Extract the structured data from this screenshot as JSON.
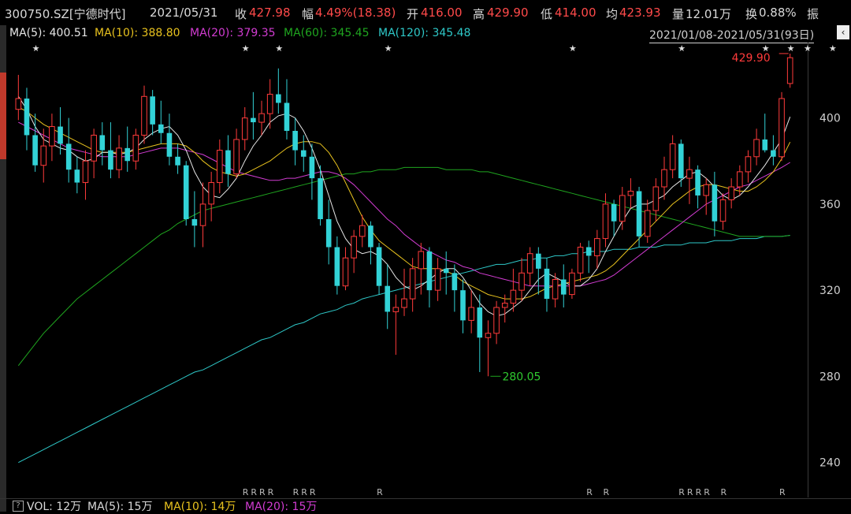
{
  "header": {
    "code": "300750.SZ[宁德时代]",
    "date": "2021/05/31",
    "close_label": "收",
    "close": "427.98",
    "change_label": "幅",
    "change": "4.49%(18.38)",
    "open_label": "开",
    "open": "416.00",
    "high_label": "高",
    "high": "429.90",
    "low_label": "低",
    "low": "414.00",
    "avg_label": "均",
    "avg": "423.93",
    "vol_label": "量",
    "vol": "12.01万",
    "turnover_label": "换",
    "turnover": "0.88%",
    "amp_label": "振"
  },
  "ma_legend": {
    "ma5": "MA(5): 400.51",
    "ma10": "MA(10): 388.80",
    "ma20": "MA(20): 379.35",
    "ma60": "MA(60): 345.45",
    "ma120": "MA(120): 345.48",
    "range": "2021/01/08-2021/05/31(93日)"
  },
  "bottom": {
    "vol": "VOL: 12万",
    "ma5": "MA(5): 15万",
    "ma10": "MA(10): 14万",
    "ma20": "MA(20): 15万"
  },
  "colors": {
    "up": "#ff3b3b",
    "down": "#32d2d6",
    "ma5": "#e6e6e6",
    "ma10": "#e8c21e",
    "ma20": "#d23cd2",
    "ma60": "#1fa51f",
    "ma120": "#2ec8c8",
    "axis_text": "#cfcfcf"
  },
  "chart_data": {
    "type": "candlestick",
    "ylim": [
      230,
      435
    ],
    "yticks": [
      240,
      280,
      320,
      360,
      400
    ],
    "annotations": {
      "high_label": "429.90",
      "low_label": "280.05"
    },
    "candles": [
      [
        404,
        420,
        399,
        409
      ],
      [
        409,
        414,
        385,
        392
      ],
      [
        392,
        402,
        375,
        378
      ],
      [
        378,
        395,
        370,
        387
      ],
      [
        387,
        402,
        380,
        396
      ],
      [
        396,
        405,
        383,
        388
      ],
      [
        388,
        400,
        370,
        376
      ],
      [
        376,
        382,
        365,
        370
      ],
      [
        370,
        385,
        362,
        380
      ],
      [
        380,
        395,
        372,
        392
      ],
      [
        392,
        398,
        378,
        385
      ],
      [
        385,
        398,
        372,
        376
      ],
      [
        376,
        392,
        372,
        386
      ],
      [
        386,
        396,
        375,
        380
      ],
      [
        380,
        395,
        376,
        392
      ],
      [
        392,
        415,
        388,
        410
      ],
      [
        410,
        413,
        392,
        397
      ],
      [
        397,
        408,
        388,
        393
      ],
      [
        393,
        402,
        378,
        382
      ],
      [
        382,
        388,
        374,
        378
      ],
      [
        378,
        380,
        350,
        353
      ],
      [
        353,
        366,
        340,
        350
      ],
      [
        350,
        370,
        340,
        360
      ],
      [
        360,
        375,
        352,
        370
      ],
      [
        370,
        390,
        365,
        385
      ],
      [
        385,
        392,
        368,
        374
      ],
      [
        374,
        395,
        372,
        390
      ],
      [
        390,
        405,
        385,
        400
      ],
      [
        400,
        412,
        390,
        398
      ],
      [
        398,
        408,
        392,
        402
      ],
      [
        402,
        418,
        395,
        411
      ],
      [
        411,
        423,
        402,
        407
      ],
      [
        407,
        418,
        390,
        394
      ],
      [
        394,
        400,
        378,
        385
      ],
      [
        385,
        392,
        375,
        382
      ],
      [
        382,
        388,
        362,
        372
      ],
      [
        372,
        378,
        350,
        353
      ],
      [
        353,
        362,
        332,
        340
      ],
      [
        340,
        345,
        318,
        322
      ],
      [
        322,
        340,
        320,
        335
      ],
      [
        335,
        348,
        328,
        345
      ],
      [
        345,
        355,
        340,
        350
      ],
      [
        350,
        352,
        332,
        340
      ],
      [
        340,
        342,
        318,
        322
      ],
      [
        322,
        332,
        302,
        310
      ],
      [
        310,
        318,
        290,
        312
      ],
      [
        312,
        330,
        308,
        316
      ],
      [
        316,
        335,
        310,
        330
      ],
      [
        330,
        342,
        318,
        338
      ],
      [
        338,
        340,
        312,
        320
      ],
      [
        320,
        335,
        315,
        330
      ],
      [
        330,
        338,
        318,
        328
      ],
      [
        328,
        332,
        310,
        320
      ],
      [
        320,
        325,
        300,
        306
      ],
      [
        306,
        320,
        300,
        312
      ],
      [
        312,
        318,
        282,
        298
      ],
      [
        298,
        306,
        280.05,
        300
      ],
      [
        300,
        315,
        295,
        312
      ],
      [
        312,
        318,
        305,
        314
      ],
      [
        314,
        330,
        310,
        320
      ],
      [
        320,
        335,
        315,
        328
      ],
      [
        328,
        340,
        322,
        337
      ],
      [
        337,
        340,
        318,
        330
      ],
      [
        330,
        335,
        310,
        316
      ],
      [
        316,
        328,
        312,
        325
      ],
      [
        325,
        332,
        312,
        318
      ],
      [
        318,
        330,
        316,
        328
      ],
      [
        328,
        342,
        324,
        340
      ],
      [
        340,
        343,
        328,
        336
      ],
      [
        336,
        348,
        330,
        344
      ],
      [
        344,
        365,
        340,
        360
      ],
      [
        360,
        362,
        345,
        352
      ],
      [
        352,
        368,
        348,
        364
      ],
      [
        364,
        372,
        358,
        366
      ],
      [
        366,
        368,
        340,
        345
      ],
      [
        345,
        362,
        342,
        357
      ],
      [
        357,
        372,
        352,
        368
      ],
      [
        368,
        382,
        362,
        376
      ],
      [
        376,
        392,
        372,
        388
      ],
      [
        388,
        390,
        368,
        372
      ],
      [
        372,
        382,
        360,
        376
      ],
      [
        376,
        378,
        358,
        364
      ],
      [
        364,
        372,
        355,
        369
      ],
      [
        369,
        375,
        345,
        352
      ],
      [
        352,
        365,
        348,
        362
      ],
      [
        362,
        372,
        358,
        368
      ],
      [
        368,
        378,
        364,
        375
      ],
      [
        375,
        385,
        370,
        382
      ],
      [
        382,
        395,
        378,
        390
      ],
      [
        390,
        402,
        384,
        385
      ],
      [
        385,
        392,
        378,
        382
      ],
      [
        382,
        412,
        380,
        409
      ],
      [
        416,
        429.9,
        414,
        427.98
      ]
    ],
    "ma5": [
      410,
      404,
      396,
      390,
      388,
      386,
      385,
      382,
      380,
      381,
      384,
      384,
      383,
      384,
      386,
      390,
      393,
      395,
      396,
      392,
      385,
      375,
      368,
      364,
      363,
      367,
      372,
      380,
      387,
      392,
      398,
      401,
      402,
      400,
      394,
      386,
      376,
      364,
      352,
      344,
      339,
      337,
      338,
      336,
      332,
      326,
      322,
      320,
      322,
      325,
      328,
      330,
      330,
      326,
      320,
      314,
      310,
      308,
      309,
      312,
      315,
      320,
      325,
      328,
      326,
      324,
      322,
      322,
      325,
      330,
      338,
      345,
      352,
      358,
      360,
      360,
      362,
      364,
      368,
      371,
      374,
      375,
      372,
      368,
      364,
      362,
      364,
      368,
      373,
      378,
      384,
      390,
      400.51
    ],
    "ma10": [
      405,
      403,
      400,
      397,
      395,
      393,
      391,
      389,
      387,
      385,
      384,
      384,
      384,
      384,
      385,
      386,
      387,
      388,
      388,
      388,
      387,
      384,
      380,
      377,
      375,
      374,
      373,
      374,
      376,
      378,
      380,
      383,
      386,
      388,
      389,
      389,
      388,
      384,
      378,
      370,
      362,
      354,
      348,
      343,
      340,
      337,
      334,
      331,
      330,
      330,
      330,
      329,
      327,
      324,
      322,
      320,
      318,
      317,
      316,
      316,
      316,
      317,
      319,
      321,
      322,
      323,
      324,
      325,
      326,
      327,
      329,
      332,
      336,
      340,
      344,
      348,
      352,
      356,
      360,
      363,
      366,
      368,
      369,
      369,
      368,
      367,
      366,
      366,
      368,
      371,
      375,
      381,
      388.8
    ],
    "ma20": [
      398,
      396,
      394,
      392,
      390,
      388,
      386,
      385,
      384,
      383,
      382,
      382,
      382,
      382,
      383,
      384,
      385,
      386,
      386,
      386,
      385,
      384,
      383,
      381,
      379,
      377,
      375,
      374,
      373,
      372,
      371,
      371,
      372,
      372,
      373,
      374,
      375,
      375,
      374,
      372,
      369,
      365,
      361,
      357,
      353,
      350,
      346,
      343,
      340,
      338,
      336,
      334,
      333,
      331,
      330,
      328,
      327,
      326,
      325,
      324,
      323,
      322,
      322,
      322,
      322,
      322,
      322,
      322,
      323,
      324,
      325,
      327,
      330,
      333,
      336,
      339,
      342,
      345,
      348,
      351,
      354,
      357,
      360,
      362,
      364,
      366,
      368,
      369,
      371,
      373,
      375,
      377,
      379.35
    ],
    "ma60": [
      285,
      290,
      295,
      300,
      304,
      308,
      312,
      316,
      319,
      322,
      325,
      328,
      331,
      334,
      337,
      340,
      343,
      346,
      348,
      351,
      353,
      355,
      357,
      358,
      359,
      360,
      361,
      362,
      363,
      364,
      365,
      366,
      367,
      368,
      369,
      370,
      371,
      372,
      373,
      374,
      374,
      375,
      375,
      376,
      376,
      376,
      377,
      377,
      377,
      377,
      377,
      376,
      376,
      376,
      376,
      375,
      375,
      374,
      373,
      372,
      371,
      370,
      369,
      368,
      367,
      366,
      365,
      364,
      363,
      362,
      361,
      360,
      359,
      358,
      357,
      356,
      355,
      354,
      353,
      352,
      351,
      350,
      349,
      348,
      347,
      346,
      345,
      345,
      345,
      345,
      345,
      345,
      345.45
    ],
    "ma120": [
      240,
      242,
      244,
      246,
      248,
      250,
      252,
      254,
      256,
      258,
      260,
      262,
      264,
      266,
      268,
      270,
      272,
      274,
      276,
      278,
      280,
      282,
      283,
      285,
      287,
      289,
      291,
      293,
      295,
      297,
      298,
      300,
      302,
      304,
      305,
      307,
      309,
      310,
      311,
      313,
      314,
      316,
      317,
      318,
      319,
      320,
      321,
      322,
      323,
      324,
      325,
      326,
      327,
      328,
      329,
      330,
      331,
      332,
      332,
      333,
      334,
      334,
      335,
      335,
      336,
      336,
      337,
      337,
      338,
      338,
      338,
      339,
      339,
      339,
      340,
      340,
      340,
      341,
      341,
      341,
      342,
      342,
      342,
      343,
      343,
      343,
      344,
      344,
      344,
      345,
      345,
      345,
      345.48
    ],
    "stars": [
      2,
      27,
      31,
      44,
      66,
      79,
      89,
      92,
      94,
      97
    ],
    "r_marks": [
      27,
      28,
      29,
      30,
      33,
      34,
      35,
      43,
      68,
      70,
      79,
      80,
      81,
      82,
      84,
      91
    ]
  }
}
